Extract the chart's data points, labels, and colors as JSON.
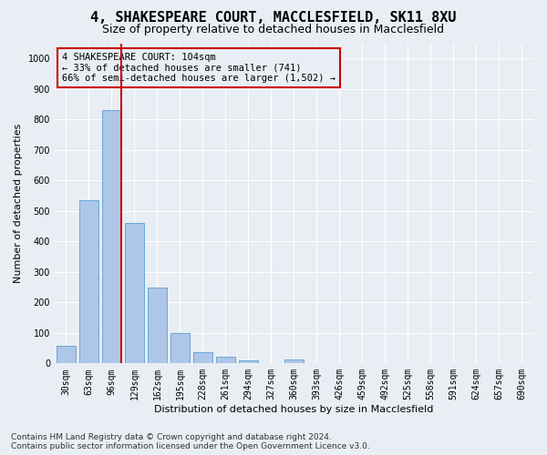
{
  "title": "4, SHAKESPEARE COURT, MACCLESFIELD, SK11 8XU",
  "subtitle": "Size of property relative to detached houses in Macclesfield",
  "xlabel": "Distribution of detached houses by size in Macclesfield",
  "ylabel": "Number of detached properties",
  "footer_line1": "Contains HM Land Registry data © Crown copyright and database right 2024.",
  "footer_line2": "Contains public sector information licensed under the Open Government Licence v3.0.",
  "bar_labels": [
    "30sqm",
    "63sqm",
    "96sqm",
    "129sqm",
    "162sqm",
    "195sqm",
    "228sqm",
    "261sqm",
    "294sqm",
    "327sqm",
    "360sqm",
    "393sqm",
    "426sqm",
    "459sqm",
    "492sqm",
    "525sqm",
    "558sqm",
    "591sqm",
    "624sqm",
    "657sqm",
    "690sqm"
  ],
  "bar_values": [
    57,
    535,
    830,
    460,
    248,
    98,
    37,
    22,
    10,
    0,
    12,
    0,
    0,
    0,
    0,
    0,
    0,
    0,
    0,
    0,
    0
  ],
  "bar_color": "#aec6e8",
  "bar_edge_color": "#5a9fd4",
  "highlight_bar_index": 2,
  "highlight_color": "#cc0000",
  "annotation_text": "4 SHAKESPEARE COURT: 104sqm\n← 33% of detached houses are smaller (741)\n66% of semi-detached houses are larger (1,502) →",
  "ylim": [
    0,
    1050
  ],
  "yticks": [
    0,
    100,
    200,
    300,
    400,
    500,
    600,
    700,
    800,
    900,
    1000
  ],
  "background_color": "#e8eef4",
  "grid_color": "#ffffff",
  "title_fontsize": 11,
  "subtitle_fontsize": 9,
  "axis_label_fontsize": 8,
  "tick_fontsize": 7,
  "annotation_fontsize": 7.5,
  "footer_fontsize": 6.5
}
